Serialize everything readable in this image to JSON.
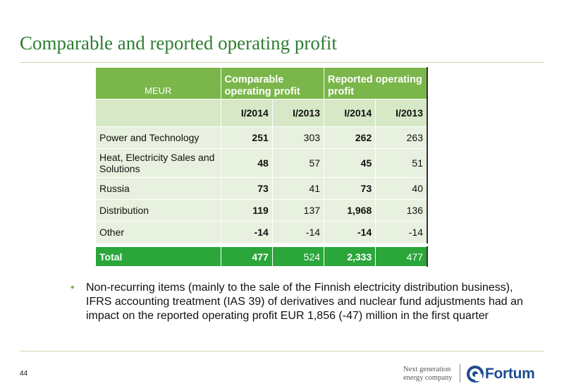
{
  "slide": {
    "title": "Comparable and reported operating profit",
    "page_number": "44"
  },
  "table": {
    "unit_label": "MEUR",
    "group_headers": [
      "Comparable operating profit",
      "Reported operating profit"
    ],
    "period_headers": [
      "I/2014",
      "I/2013",
      "I/2014",
      "I/2013"
    ],
    "rows": [
      {
        "label": "Power and Technology",
        "values": [
          "251",
          "303",
          "262",
          "263"
        ]
      },
      {
        "label": "Heat, Electricity Sales and Solutions",
        "values": [
          "48",
          "57",
          "45",
          "51"
        ]
      },
      {
        "label": "Russia",
        "values": [
          "73",
          "41",
          "73",
          "40"
        ]
      },
      {
        "label": "Distribution",
        "values": [
          "119",
          "137",
          "1,968",
          "136"
        ]
      },
      {
        "label": "Other",
        "values": [
          "-14",
          "-14",
          "-14",
          "-14"
        ]
      }
    ],
    "total": {
      "label": "Total",
      "values": [
        "477",
        "524",
        "2,333",
        "477"
      ]
    }
  },
  "bullet": {
    "text": "Non-recurring items (mainly to the sale of the Finnish electricity distribution business),  IFRS accounting treatment (IAS 39) of derivatives and nuclear fund adjustments had an impact on the reported operating profit EUR 1,856 (-47) million in the first quarter"
  },
  "footer": {
    "tagline_line1": "Next generation",
    "tagline_line2": "energy company",
    "logo_text": "Fortum",
    "logo_icon": "fortum-logo-icon",
    "brand_color": "#1e4c8f",
    "accent_green": "#7ab649",
    "total_green": "#2aa63a"
  }
}
